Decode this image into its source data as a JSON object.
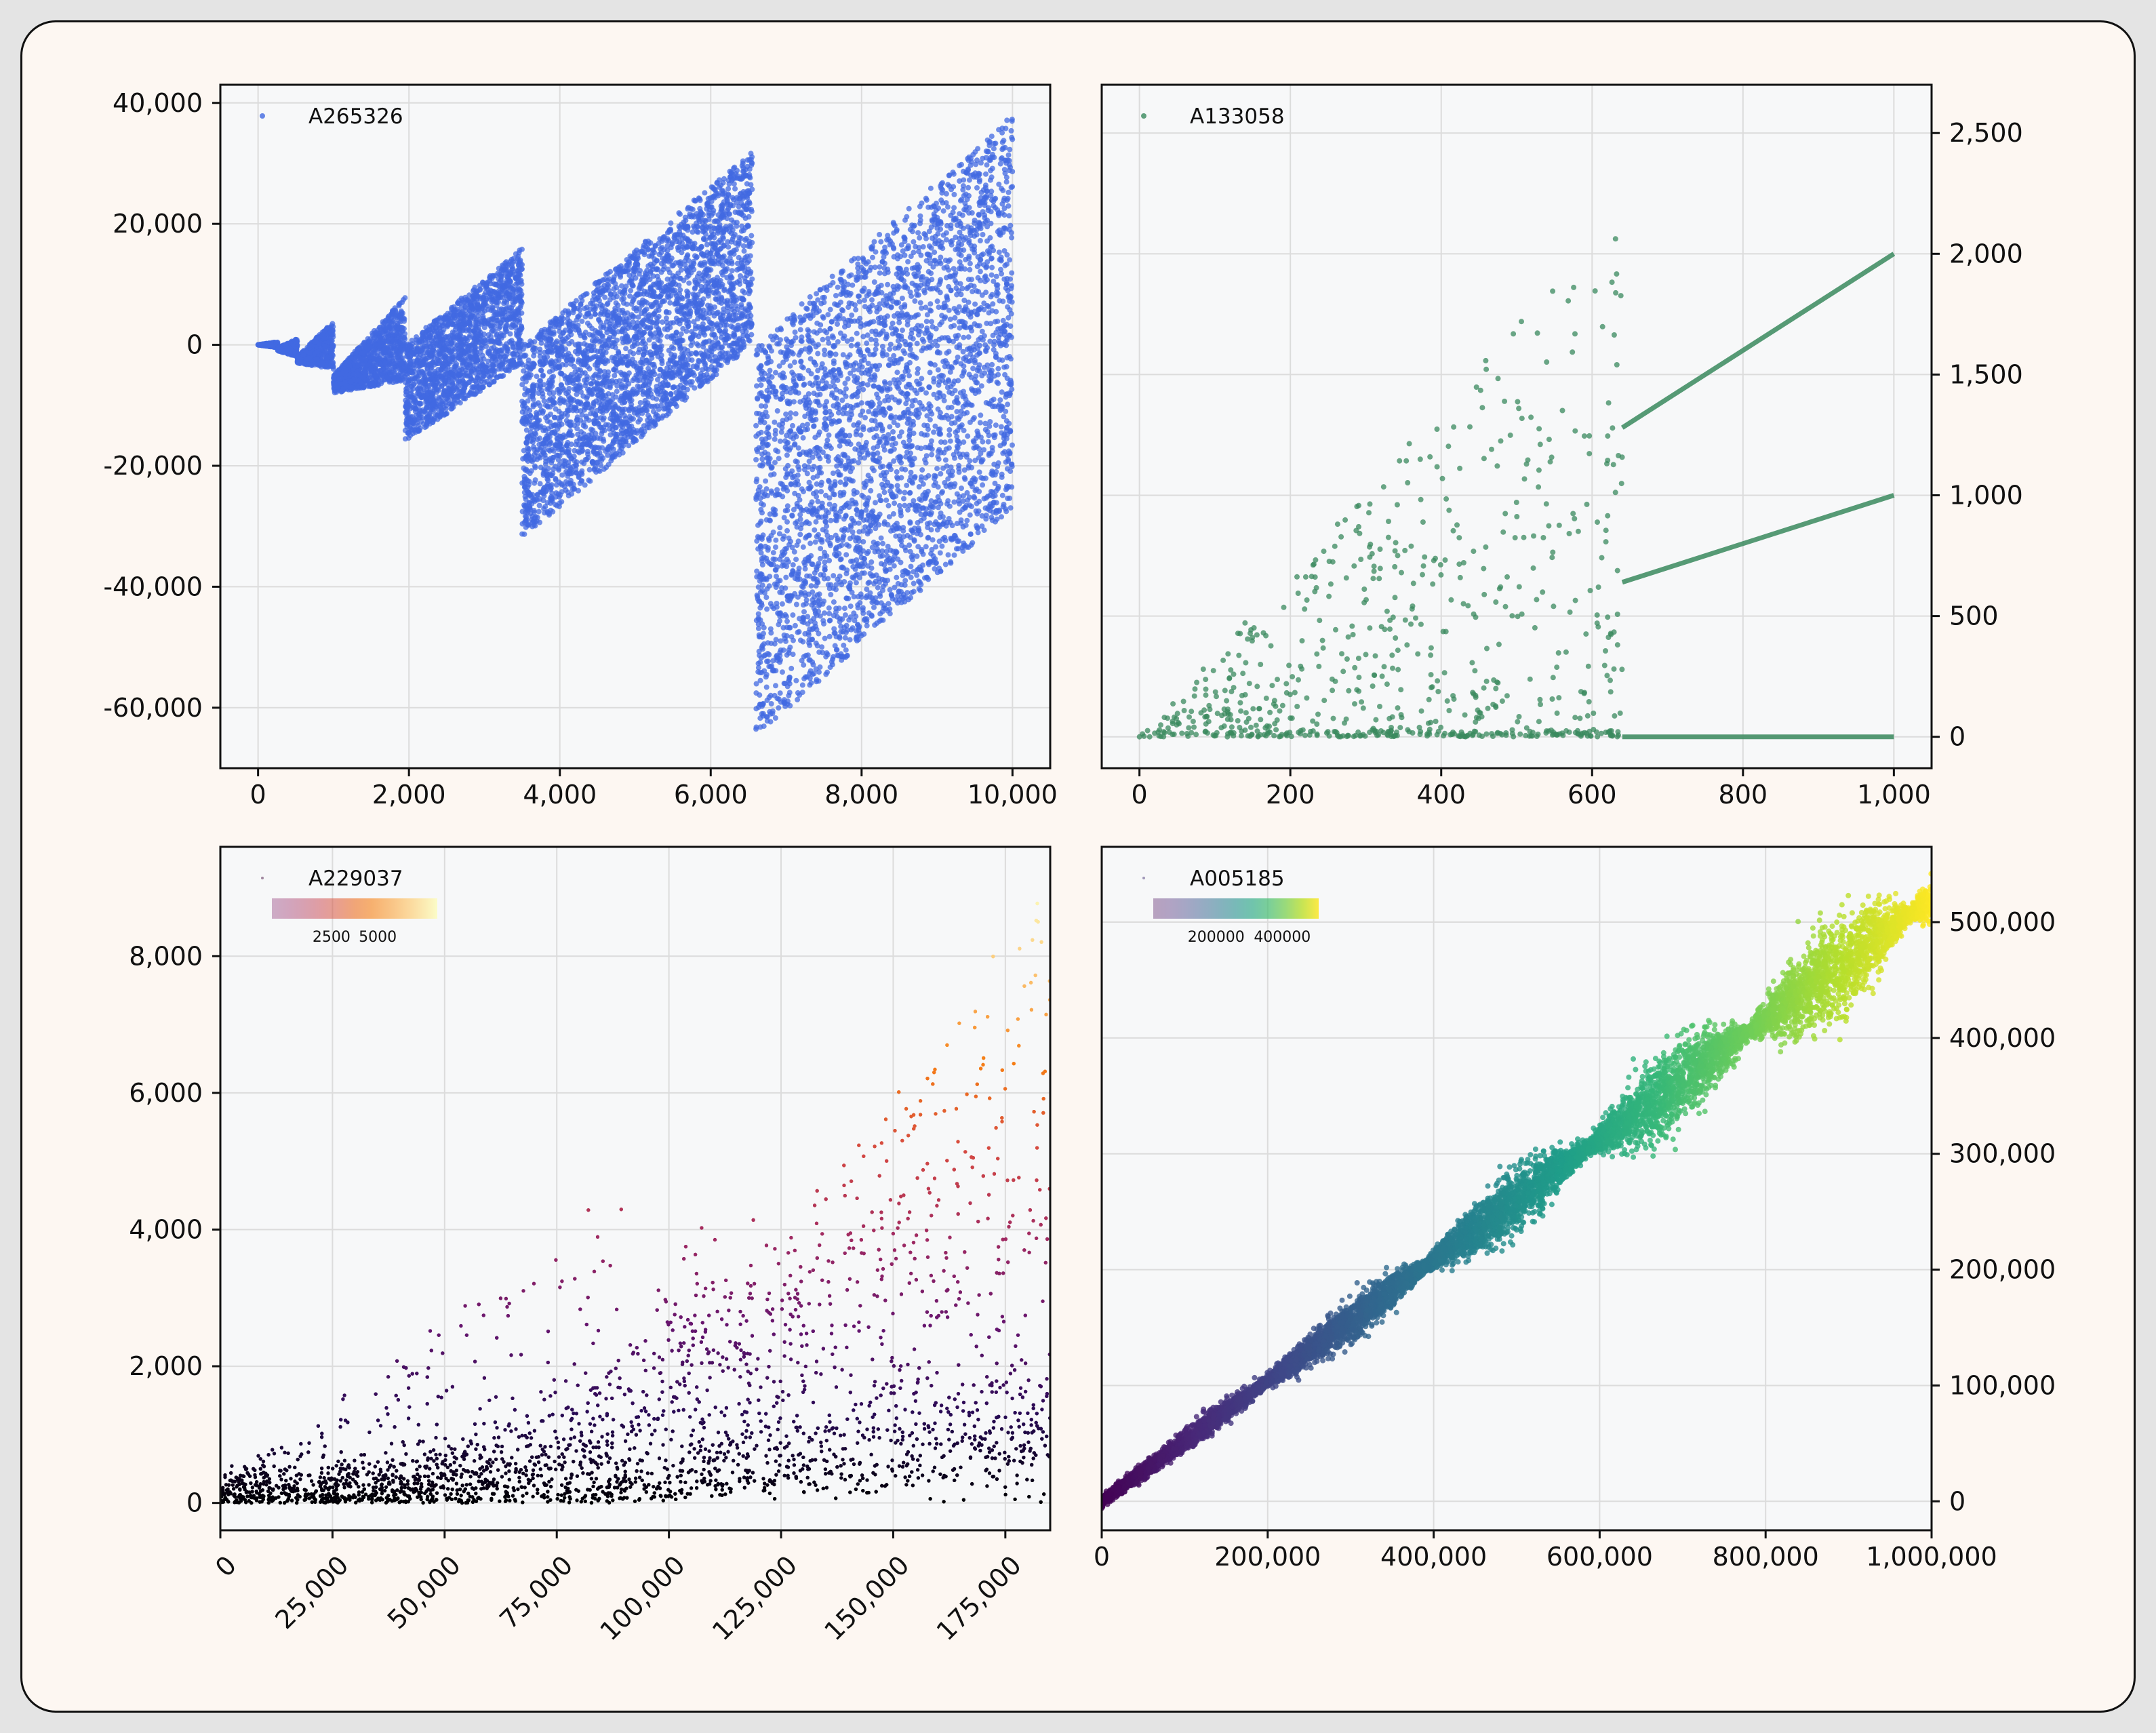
{
  "chart_data": [
    {
      "type": "scatter",
      "title": "",
      "legend": {
        "label": "A265326",
        "position": "top-left"
      },
      "color": "#4169e1",
      "xlim": [
        -500,
        10500
      ],
      "ylim": [
        -70000,
        43000
      ],
      "xticks": [
        0,
        2000,
        4000,
        6000,
        8000,
        10000
      ],
      "xtick_labels": [
        "0",
        "2,000",
        "4,000",
        "6,000",
        "8,000",
        "10,000"
      ],
      "yticks": [
        40000,
        20000,
        0,
        -20000,
        -40000,
        -60000
      ],
      "ytick_labels": [
        "40,000",
        "20,000",
        "0",
        "-20,000",
        "-40,000",
        "-60,000"
      ],
      "y_axis_side": "left",
      "grid": true,
      "bands": [
        {
          "x": [
            0,
            260
          ],
          "y_hi": [
            0,
            500
          ],
          "y_lo": [
            0,
            -500
          ]
        },
        {
          "x": [
            260,
            520
          ],
          "y_hi": [
            -500,
            1000
          ],
          "y_lo": [
            -1000,
            -2000
          ]
        },
        {
          "x": [
            520,
            1000
          ],
          "y_hi": [
            -2000,
            4000
          ],
          "y_lo": [
            -3000,
            -4000
          ]
        },
        {
          "x": [
            1000,
            1950
          ],
          "y_hi": [
            -5000,
            8000
          ],
          "y_lo": [
            -8000,
            -6000
          ]
        },
        {
          "x": [
            1950,
            3500
          ],
          "y_hi": [
            0,
            16000
          ],
          "y_lo": [
            -16000,
            -3000
          ]
        },
        {
          "x": [
            3500,
            6550
          ],
          "y_hi": [
            0,
            32000
          ],
          "y_lo": [
            -32000,
            0
          ]
        },
        {
          "x": [
            6600,
            10000
          ],
          "y_hi": [
            0,
            38000
          ],
          "y_lo": [
            -65000,
            -27000
          ]
        }
      ]
    },
    {
      "type": "scatter",
      "title": "",
      "legend": {
        "label": "A133058",
        "position": "top-left"
      },
      "color": "#3a8a5e",
      "xlim": [
        -50,
        1050
      ],
      "ylim": [
        -130,
        2700
      ],
      "xticks": [
        0,
        200,
        400,
        600,
        800,
        1000
      ],
      "xtick_labels": [
        "0",
        "200",
        "400",
        "600",
        "800",
        "1,000"
      ],
      "yticks": [
        0,
        500,
        1000,
        1500,
        2000,
        2500
      ],
      "ytick_labels": [
        "0",
        "500",
        "1,000",
        "1,500",
        "2,000",
        "2,500"
      ],
      "y_axis_side": "right",
      "grid": true,
      "scatter_region": {
        "x": [
          0,
          640
        ],
        "y_max_slope": 3.4
      },
      "lines": [
        {
          "x": [
            640,
            1000
          ],
          "y": [
            1280,
            2000
          ]
        },
        {
          "x": [
            640,
            1000
          ],
          "y": [
            640,
            1000
          ]
        },
        {
          "x": [
            640,
            1000
          ],
          "y": [
            0,
            0
          ]
        }
      ]
    },
    {
      "type": "scatter",
      "title": "",
      "legend": {
        "label": "A229037",
        "position": "top-left"
      },
      "colorbar": {
        "colormap": "magma",
        "ticks": [
          "2500",
          "5000"
        ]
      },
      "xlim": [
        0,
        185000
      ],
      "ylim": [
        -400,
        9600
      ],
      "xticks": [
        0,
        25000,
        50000,
        75000,
        100000,
        125000,
        150000,
        175000
      ],
      "xtick_labels": [
        "0",
        "25,000",
        "50,000",
        "75,000",
        "100,000",
        "125,000",
        "150,000",
        "175,000"
      ],
      "xtick_rotation": -45,
      "yticks": [
        0,
        2000,
        4000,
        6000,
        8000
      ],
      "ytick_labels": [
        "0",
        "2,000",
        "4,000",
        "6,000",
        "8,000"
      ],
      "y_axis_side": "left",
      "grid": true
    },
    {
      "type": "scatter",
      "title": "",
      "legend": {
        "label": "A005185",
        "position": "top-left"
      },
      "colorbar": {
        "colormap": "viridis",
        "ticks": [
          "200000",
          "400000"
        ]
      },
      "xlim": [
        0,
        1000000
      ],
      "ylim": [
        -25000,
        565000
      ],
      "xticks": [
        0,
        200000,
        400000,
        600000,
        800000,
        1000000
      ],
      "xtick_labels": [
        "0",
        "200,000",
        "400,000",
        "600,000",
        "800,000",
        "1,000,000"
      ],
      "yticks": [
        0,
        100000,
        200000,
        300000,
        400000,
        500000
      ],
      "ytick_labels": [
        "0",
        "100,000",
        "200,000",
        "300,000",
        "400,000",
        "500,000"
      ],
      "y_axis_side": "right",
      "grid": true,
      "trend": {
        "slope": 0.52
      }
    }
  ]
}
